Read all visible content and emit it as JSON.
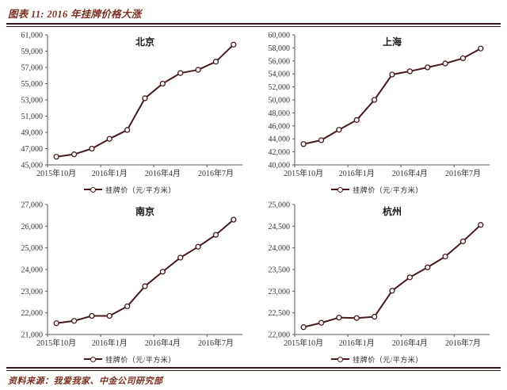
{
  "figure": {
    "title": "图表 11: 2016 年挂牌价格大涨"
  },
  "footer": {
    "source": "资料来源：我爱我家、中金公司研究部"
  },
  "colors": {
    "line": "#47191c",
    "marker_fill": "#ffffff",
    "accent_text": "#7a2e22",
    "rule": "#40151a",
    "axis": "#595959",
    "tick_label": "#333333",
    "chart_title": "#1a1a1a"
  },
  "chart_data": [
    {
      "type": "line",
      "title": "北京",
      "legend": "挂牌价（元/平方米）",
      "x": [
        "2015-10",
        "2015-11",
        "2015-12",
        "2016-01",
        "2016-02",
        "2016-03",
        "2016-04",
        "2016-05",
        "2016-06",
        "2016-07",
        "2016-08"
      ],
      "values": [
        46000,
        46300,
        47000,
        48200,
        49300,
        53200,
        55000,
        56300,
        56700,
        57700,
        59800
      ],
      "ylim": [
        45000,
        61000
      ],
      "ystep": 2000,
      "x_tick_labels": [
        "2015年10月",
        "2016年1月",
        "2016年4月",
        "2016年7月"
      ],
      "x_tick_indices": [
        0,
        3,
        6,
        9
      ],
      "grid": "off",
      "legend_position": "bottom",
      "marker": "open-circle"
    },
    {
      "type": "line",
      "title": "上海",
      "legend": "挂牌价（元/平方米）",
      "x": [
        "2015-10",
        "2015-11",
        "2015-12",
        "2016-01",
        "2016-02",
        "2016-03",
        "2016-04",
        "2016-05",
        "2016-06",
        "2016-07",
        "2016-08"
      ],
      "values": [
        43200,
        43800,
        45400,
        46900,
        50000,
        53900,
        54400,
        55000,
        55600,
        56400,
        57900
      ],
      "ylim": [
        40000,
        60000
      ],
      "ystep": 2000,
      "x_tick_labels": [
        "2015年10月",
        "2016年1月",
        "2016年4月",
        "2016年7月"
      ],
      "x_tick_indices": [
        0,
        3,
        6,
        9
      ],
      "grid": "off",
      "legend_position": "bottom",
      "marker": "open-circle"
    },
    {
      "type": "line",
      "title": "南京",
      "legend": "挂牌价（元/平方米）",
      "x": [
        "2015-10",
        "2015-11",
        "2015-12",
        "2016-01",
        "2016-02",
        "2016-03",
        "2016-04",
        "2016-05",
        "2016-06",
        "2016-07",
        "2016-08"
      ],
      "values": [
        21520,
        21630,
        21860,
        21860,
        22300,
        23230,
        23900,
        24550,
        25050,
        25600,
        26300
      ],
      "ylim": [
        21000,
        27000
      ],
      "ystep": 1000,
      "x_tick_labels": [
        "2015年10月",
        "2016年1月",
        "2016年4月",
        "2016年7月"
      ],
      "x_tick_indices": [
        0,
        3,
        6,
        9
      ],
      "grid": "off",
      "legend_position": "bottom",
      "marker": "open-circle"
    },
    {
      "type": "line",
      "title": "杭州",
      "legend": "挂牌价（元/平方米）",
      "x": [
        "2015-10",
        "2015-11",
        "2015-12",
        "2016-01",
        "2016-02",
        "2016-03",
        "2016-04",
        "2016-05",
        "2016-06",
        "2016-07",
        "2016-08"
      ],
      "values": [
        22170,
        22270,
        22390,
        22380,
        22410,
        23010,
        23320,
        23550,
        23800,
        24150,
        24530
      ],
      "ylim": [
        22000,
        25000
      ],
      "ystep": 500,
      "x_tick_labels": [
        "2015年10月",
        "2016年1月",
        "2016年4月",
        "2016年7月"
      ],
      "x_tick_indices": [
        0,
        3,
        6,
        9
      ],
      "grid": "off",
      "legend_position": "bottom",
      "marker": "open-circle"
    }
  ]
}
